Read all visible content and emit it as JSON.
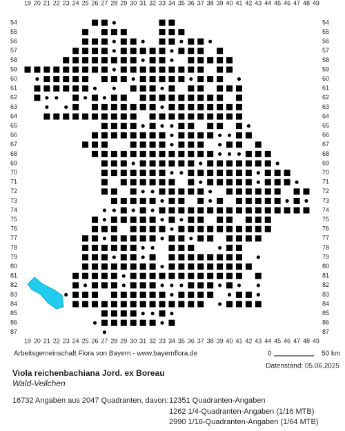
{
  "map": {
    "columns": [
      19,
      20,
      21,
      22,
      23,
      24,
      25,
      26,
      27,
      28,
      29,
      30,
      31,
      32,
      33,
      34,
      35,
      36,
      37,
      38,
      39,
      40,
      41,
      42,
      43,
      44,
      45,
      46,
      47,
      48,
      49
    ],
    "rows": [
      54,
      55,
      56,
      57,
      58,
      59,
      60,
      61,
      62,
      63,
      64,
      65,
      66,
      67,
      68,
      69,
      70,
      71,
      72,
      73,
      74,
      75,
      76,
      77,
      78,
      79,
      80,
      81,
      82,
      83,
      84,
      85,
      86,
      87
    ],
    "credit": "Arbeitsgemeinschaft Flora von Bayern - www.bayernflora.de",
    "scale_start": "0",
    "scale_end": "50 km",
    "date": "Datenstand: 05.06.2025"
  },
  "species": {
    "scientific_name": "Viola reichenbachiana Jord. ex Boreau",
    "common_name": "Wald-Veilchen"
  },
  "summary": {
    "total": "16732 Angaben aus 2047 Quadranten, davon:",
    "breakdown": [
      "12351 Quadranten-Angaben",
      "1262 1/4-Quadranten-Angaben (1/16 MTB)",
      "2990 1/16-Quadranten-Angaben (1/64 MTB)"
    ]
  }
}
